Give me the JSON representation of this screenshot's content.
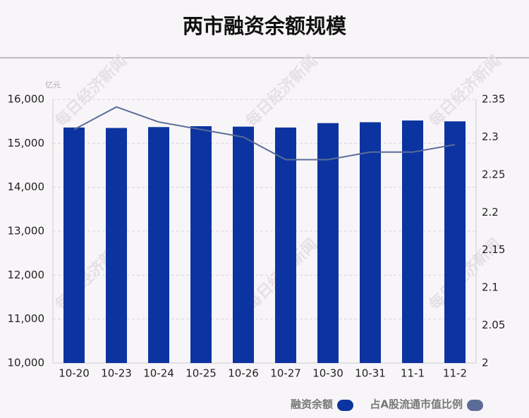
{
  "chart_data": {
    "type": "bar",
    "title": "两市融资余额规模",
    "y_unit": "亿元",
    "watermark": "每日经济新闻",
    "categories": [
      "10-20",
      "10-23",
      "10-24",
      "10-25",
      "10-26",
      "10-27",
      "10-30",
      "10-31",
      "11-1",
      "11-2"
    ],
    "series": [
      {
        "name": "融资余额",
        "type": "bar",
        "color": "#0c34a0",
        "values": [
          15360,
          15350,
          15370,
          15390,
          15380,
          15360,
          15460,
          15480,
          15520,
          15500
        ]
      },
      {
        "name": "占A股流通市值比例",
        "type": "line",
        "axis": "y2",
        "color": "#5b6c99",
        "values": [
          2.31,
          2.34,
          2.32,
          2.31,
          2.3,
          2.27,
          2.27,
          2.28,
          2.28,
          2.29
        ]
      }
    ],
    "ylim": [
      10000,
      16000
    ],
    "yticks": [
      {
        "value": 10000,
        "label": "10,000"
      },
      {
        "value": 11000,
        "label": "11,000"
      },
      {
        "value": 12000,
        "label": "12,000"
      },
      {
        "value": 13000,
        "label": "13,000"
      },
      {
        "value": 14000,
        "label": "14,000"
      },
      {
        "value": 15000,
        "label": "15,000"
      },
      {
        "value": 16000,
        "label": "16,000"
      }
    ],
    "y2lim": [
      2,
      2.35
    ],
    "y2ticks": [
      2,
      2.05,
      2.1,
      2.15,
      2.2,
      2.25,
      2.3,
      2.35
    ],
    "grid": true
  }
}
